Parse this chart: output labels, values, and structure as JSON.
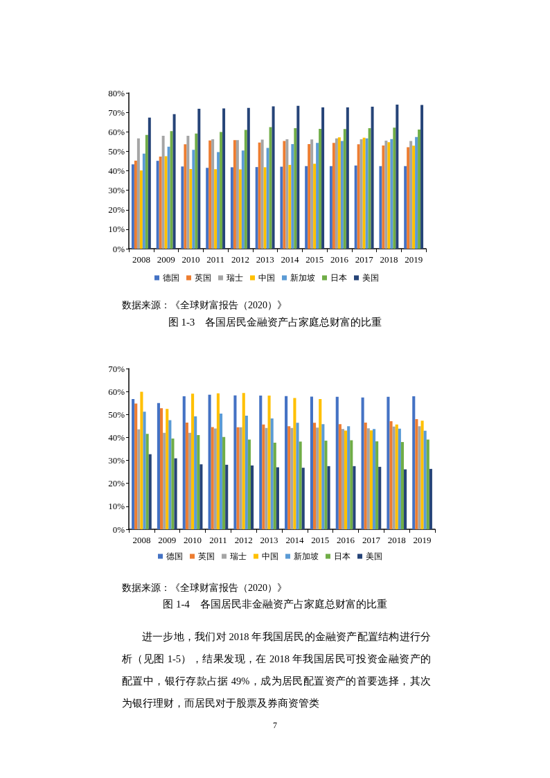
{
  "chart_data": [
    {
      "type": "bar",
      "title": "图 1-3　各国居民金融资产占家庭总财富的比重",
      "categories": [
        "2008",
        "2009",
        "2010",
        "2011",
        "2012",
        "2013",
        "2014",
        "2015",
        "2016",
        "2017",
        "2018",
        "2019"
      ],
      "series": [
        {
          "name": "德国",
          "color": "#4472c4",
          "values": [
            43.3,
            45.1,
            42.2,
            41.5,
            41.8,
            41.9,
            42.1,
            42.4,
            42.4,
            42.7,
            42.4,
            42.4
          ]
        },
        {
          "name": "英国",
          "color": "#ed7d31",
          "values": [
            45.2,
            47.3,
            53.6,
            55.6,
            55.7,
            54.5,
            55.3,
            53.7,
            54.3,
            53.6,
            53.0,
            52.1
          ]
        },
        {
          "name": "瑞士",
          "color": "#a5a5a5",
          "values": [
            56.6,
            58.0,
            58.0,
            56.2,
            55.7,
            56.0,
            56.2,
            56.1,
            56.6,
            56.2,
            55.5,
            55.3
          ]
        },
        {
          "name": "中国",
          "color": "#ffc000",
          "values": [
            40.2,
            47.5,
            40.9,
            40.8,
            40.7,
            41.8,
            43.0,
            43.6,
            57.2,
            57.0,
            54.7,
            52.9
          ]
        },
        {
          "name": "新加坡",
          "color": "#5b9bd5",
          "values": [
            48.8,
            52.4,
            50.8,
            49.6,
            50.4,
            51.7,
            53.7,
            54.3,
            55.3,
            56.6,
            56.3,
            57.3
          ]
        },
        {
          "name": "日本",
          "color": "#70ad47",
          "values": [
            58.4,
            60.4,
            59.1,
            59.9,
            61.0,
            62.4,
            61.9,
            61.5,
            61.4,
            61.9,
            62.1,
            61.2
          ]
        },
        {
          "name": "美国",
          "color": "#264478",
          "values": [
            67.3,
            69.1,
            71.8,
            72.0,
            72.3,
            73.1,
            73.3,
            72.5,
            72.5,
            72.9,
            74.0,
            73.8
          ]
        }
      ],
      "ylim": [
        0,
        80
      ],
      "yticks": [
        {
          "value": 0,
          "label": "0%"
        },
        {
          "value": 10,
          "label": "10%"
        },
        {
          "value": 20,
          "label": "20%"
        },
        {
          "value": 30,
          "label": "30%"
        },
        {
          "value": 40,
          "label": "40%"
        },
        {
          "value": 50,
          "label": "50%"
        },
        {
          "value": 60,
          "label": "60%"
        },
        {
          "value": 70,
          "label": "70%"
        },
        {
          "value": 80,
          "label": "80%"
        }
      ],
      "grid": false,
      "legend": "bottom",
      "annotations": [
        "数据来源：《全球财富报告（2020）》"
      ]
    },
    {
      "type": "bar",
      "title": "图 1-4　各国居民非金融资产占家庭总财富的比重",
      "categories": [
        "2008",
        "2009",
        "2010",
        "2011",
        "2012",
        "2013",
        "2014",
        "2015",
        "2016",
        "2017",
        "2018",
        "2019"
      ],
      "series": [
        {
          "name": "德国",
          "color": "#4472c4",
          "values": [
            56.7,
            55.0,
            57.9,
            58.6,
            58.3,
            58.2,
            58.0,
            57.8,
            57.7,
            57.4,
            57.7,
            57.9
          ]
        },
        {
          "name": "英国",
          "color": "#ed7d31",
          "values": [
            54.8,
            52.7,
            46.5,
            44.5,
            44.4,
            45.6,
            44.9,
            46.4,
            45.8,
            46.5,
            47.1,
            48.0
          ]
        },
        {
          "name": "瑞士",
          "color": "#a5a5a5",
          "values": [
            43.5,
            42.0,
            42.0,
            43.9,
            44.4,
            44.1,
            44.1,
            44.3,
            43.7,
            44.0,
            44.7,
            44.9
          ]
        },
        {
          "name": "中国",
          "color": "#ffc000",
          "values": [
            59.9,
            52.4,
            59.1,
            59.2,
            59.4,
            58.2,
            57.2,
            56.7,
            43.0,
            43.1,
            45.6,
            47.3
          ]
        },
        {
          "name": "新加坡",
          "color": "#5b9bd5",
          "values": [
            51.2,
            47.5,
            49.2,
            50.4,
            49.5,
            48.3,
            46.4,
            45.8,
            44.9,
            43.7,
            43.8,
            42.9
          ]
        },
        {
          "name": "日本",
          "color": "#70ad47",
          "values": [
            41.6,
            39.5,
            41.0,
            40.2,
            39.1,
            37.7,
            38.2,
            38.6,
            38.8,
            38.3,
            38.0,
            39.1
          ]
        },
        {
          "name": "美国",
          "color": "#264478",
          "values": [
            32.7,
            30.9,
            28.3,
            28.1,
            27.8,
            27.0,
            26.8,
            27.5,
            27.5,
            27.2,
            26.1,
            26.3
          ]
        }
      ],
      "ylim": [
        0,
        70
      ],
      "yticks": [
        {
          "value": 0,
          "label": "0%"
        },
        {
          "value": 10,
          "label": "10%"
        },
        {
          "value": 20,
          "label": "20%"
        },
        {
          "value": 30,
          "label": "30%"
        },
        {
          "value": 40,
          "label": "40%"
        },
        {
          "value": 50,
          "label": "50%"
        },
        {
          "value": 60,
          "label": "60%"
        },
        {
          "value": 70,
          "label": "70%"
        }
      ],
      "grid": false,
      "legend": "bottom",
      "annotations": [
        "数据来源：《全球财富报告（2020）》",
        "进一步地，我们对 2018 年我国居民的金融资产配置结构进行分析（见图 1-5），结果发现，在 2018 年我国居民可投资金融资产的配置中，银行存款占据 49%，成为居民配置资产的首要选择，其次为银行理财，而居民对于股票及券商资管类",
        "7"
      ]
    }
  ]
}
